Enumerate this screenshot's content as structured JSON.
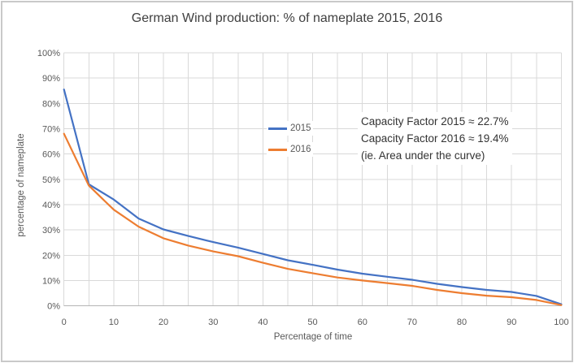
{
  "chart_data": {
    "type": "line",
    "title": "German Wind production: % of nameplate 2015, 2016",
    "xlabel": "Percentage of time",
    "ylabel": "percentage of nameplate",
    "xlim": [
      0,
      100
    ],
    "ylim": [
      0,
      100
    ],
    "x_tick_step": 10,
    "x_grid_step": 5,
    "y_tick_step": 10,
    "grid": true,
    "x_ticks": [
      "0",
      "10",
      "20",
      "30",
      "40",
      "50",
      "60",
      "70",
      "80",
      "90",
      "100"
    ],
    "y_ticks": [
      "0%",
      "10%",
      "20%",
      "30%",
      "40%",
      "50%",
      "60%",
      "70%",
      "80%",
      "90%",
      "100%"
    ],
    "x": [
      0,
      5,
      10,
      15,
      20,
      25,
      30,
      35,
      40,
      45,
      50,
      55,
      60,
      65,
      70,
      75,
      80,
      85,
      90,
      95,
      100
    ],
    "series": [
      {
        "name": "2015",
        "color": "#4472C4",
        "values": [
          85.5,
          48,
          42,
          34.5,
          30.2,
          27.6,
          25.2,
          23,
          20.5,
          18,
          16.2,
          14.3,
          12.7,
          11.5,
          10.3,
          8.7,
          7.4,
          6.3,
          5.5,
          3.9,
          0.6
        ]
      },
      {
        "name": "2016",
        "color": "#ED7D31",
        "values": [
          68,
          47.5,
          38,
          31.3,
          26.7,
          23.8,
          21.5,
          19.6,
          17,
          14.6,
          12.9,
          11.2,
          10,
          9,
          7.9,
          6.3,
          5,
          4,
          3.4,
          2.3,
          0.3
        ]
      }
    ],
    "legend_position": "inside-center-left",
    "annotations": [
      "Capacity Factor 2015 ≈ 22.7%",
      "Capacity Factor 2016 ≈ 19.4%",
      "(ie. Area under the curve)"
    ],
    "style": {
      "grid_color": "#d9d9d9",
      "axis_line_color": "#b5b5b5",
      "tick_text_color": "#595959",
      "title_color": "#404040",
      "annotation_color": "#333333",
      "frame_border_color": "#c9c9c9"
    }
  }
}
